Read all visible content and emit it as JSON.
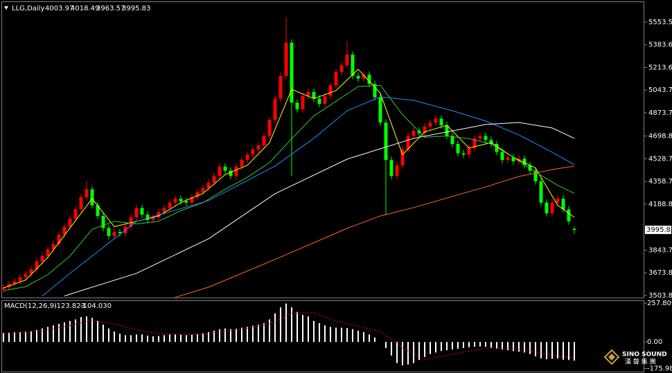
{
  "chart_data": [
    {
      "type": "candlestick",
      "title": "LLG,Daily",
      "open": [
        3550,
        3566,
        3590,
        3610,
        3640,
        3665,
        3700,
        3760,
        3800,
        3850,
        3890,
        3960,
        4020,
        4080,
        4150,
        4240,
        4300,
        4180,
        4100,
        4010,
        3950,
        3980,
        3970,
        4020,
        4090,
        4160,
        4110,
        4070,
        4090,
        4130,
        4160,
        4200,
        4230,
        4210,
        4200,
        4240,
        4280,
        4310,
        4350,
        4400,
        4470,
        4440,
        4400,
        4470,
        4520,
        4560,
        4600,
        4630,
        4700,
        4820,
        4980,
        5150,
        5400,
        4950,
        4900,
        5000,
        5030,
        4980,
        4940,
        5000,
        5080,
        5180,
        5230,
        5310,
        5150,
        5130,
        5160,
        5090,
        4990,
        4800,
        4520,
        4400,
        4480,
        4600,
        4700,
        4740,
        4720,
        4770,
        4800,
        4830,
        4780,
        4700,
        4640,
        4570,
        4560,
        4610,
        4680,
        4700,
        4670,
        4640,
        4580,
        4520,
        4540,
        4510,
        4530,
        4480,
        4440,
        4360,
        4200,
        4120,
        4200,
        4230,
        4150,
        4003.97
      ],
      "high": [
        3591,
        3615,
        3635,
        3665,
        3690,
        3725,
        3785,
        3825,
        3875,
        3915,
        3985,
        4045,
        4105,
        4175,
        4265,
        4360,
        4325,
        4205,
        4125,
        4035,
        4005,
        4005,
        4045,
        4115,
        4185,
        4185,
        4135,
        4115,
        4155,
        4185,
        4225,
        4255,
        4255,
        4235,
        4265,
        4305,
        4335,
        4375,
        4425,
        4495,
        4495,
        4465,
        4495,
        4545,
        4585,
        4625,
        4655,
        4725,
        4845,
        5005,
        5175,
        5590,
        5425,
        4975,
        5025,
        5055,
        5055,
        5005,
        5025,
        5105,
        5205,
        5255,
        5410,
        5335,
        5175,
        5185,
        5185,
        5115,
        5015,
        4825,
        4545,
        4505,
        4625,
        4725,
        4765,
        4765,
        4795,
        4825,
        4855,
        4855,
        4805,
        4725,
        4665,
        4595,
        4635,
        4705,
        4725,
        4725,
        4695,
        4665,
        4605,
        4565,
        4565,
        4555,
        4555,
        4505,
        4465,
        4385,
        4225,
        4225,
        4255,
        4255,
        4175,
        4018.49
      ],
      "low": [
        3525,
        3541,
        3565,
        3585,
        3615,
        3640,
        3675,
        3735,
        3775,
        3825,
        3865,
        3935,
        3995,
        4055,
        4125,
        4215,
        4155,
        4075,
        3985,
        3925,
        3925,
        3945,
        3945,
        3995,
        4065,
        4085,
        4045,
        4045,
        4065,
        4105,
        4135,
        4175,
        4185,
        4175,
        4175,
        4215,
        4255,
        4285,
        4325,
        4375,
        4415,
        4375,
        4375,
        4445,
        4495,
        4535,
        4575,
        4605,
        4675,
        4795,
        4955,
        5125,
        4400,
        4875,
        4875,
        4975,
        4955,
        4915,
        4915,
        4975,
        5055,
        5155,
        5205,
        5125,
        5105,
        5105,
        5065,
        4965,
        4775,
        4111,
        4375,
        4375,
        4455,
        4575,
        4675,
        4695,
        4695,
        4745,
        4775,
        4755,
        4675,
        4615,
        4545,
        4535,
        4535,
        4585,
        4655,
        4645,
        4615,
        4555,
        4495,
        4495,
        4485,
        4485,
        4455,
        4415,
        4335,
        4175,
        4095,
        4095,
        4175,
        4125,
        4035,
        3963.57
      ],
      "close": [
        3566,
        3590,
        3610,
        3640,
        3665,
        3700,
        3760,
        3800,
        3850,
        3890,
        3960,
        4020,
        4080,
        4150,
        4240,
        4300,
        4180,
        4100,
        4010,
        3950,
        3980,
        3970,
        4020,
        4090,
        4160,
        4110,
        4070,
        4090,
        4130,
        4160,
        4200,
        4230,
        4210,
        4200,
        4240,
        4280,
        4310,
        4350,
        4400,
        4470,
        4440,
        4400,
        4470,
        4520,
        4560,
        4600,
        4630,
        4700,
        4820,
        4980,
        5150,
        5400,
        4950,
        4900,
        5000,
        5030,
        4980,
        4940,
        5000,
        5080,
        5180,
        5230,
        5310,
        5150,
        5130,
        5160,
        5090,
        4990,
        4800,
        4520,
        4400,
        4480,
        4600,
        4700,
        4740,
        4720,
        4770,
        4800,
        4830,
        4780,
        4700,
        4640,
        4570,
        4560,
        4610,
        4680,
        4700,
        4670,
        4640,
        4580,
        4520,
        4540,
        4510,
        4530,
        4480,
        4440,
        4360,
        4200,
        4120,
        4200,
        4230,
        4150,
        4060,
        3995.83
      ],
      "up_color": "#ff0000",
      "down_color": "#00ff00",
      "overlays": [
        {
          "color": "#ffff00",
          "x": [
            0,
            4,
            8,
            12,
            16,
            20,
            24,
            28,
            32,
            36,
            40,
            44,
            48,
            52,
            56,
            60,
            64,
            68,
            72,
            76,
            80,
            84,
            88,
            92,
            96,
            100,
            103
          ],
          "values": [
            3560,
            3620,
            3790,
            4010,
            4230,
            4020,
            4060,
            4100,
            4200,
            4270,
            4410,
            4480,
            4650,
            5050,
            4980,
            5040,
            5200,
            5020,
            4560,
            4730,
            4780,
            4610,
            4650,
            4540,
            4460,
            4180,
            4090
          ]
        },
        {
          "color": "#32cd32",
          "x": [
            0,
            4,
            8,
            12,
            16,
            20,
            24,
            28,
            32,
            36,
            40,
            44,
            48,
            52,
            56,
            60,
            64,
            68,
            72,
            76,
            80,
            84,
            88,
            92,
            96,
            100,
            103
          ],
          "values": [
            3540,
            3570,
            3660,
            3800,
            4000,
            4060,
            4040,
            4060,
            4140,
            4200,
            4300,
            4390,
            4500,
            4680,
            4850,
            4960,
            5070,
            5080,
            4860,
            4690,
            4700,
            4680,
            4640,
            4540,
            4430,
            4330,
            4270
          ]
        },
        {
          "color": "#1e90ff",
          "x": [
            7,
            12,
            24,
            37,
            49,
            56,
            62,
            68,
            74,
            81,
            87,
            93,
            99,
            103
          ],
          "values": [
            3500,
            3670,
            4059,
            4215,
            4474,
            4682,
            4889,
            4993,
            4967,
            4889,
            4812,
            4708,
            4578,
            4484
          ]
        },
        {
          "color": "#ffffff",
          "x": [
            11,
            14,
            24,
            37,
            49,
            62,
            74,
            87,
            93,
            99,
            103
          ],
          "values": [
            3500,
            3540,
            3670,
            3929,
            4267,
            4526,
            4682,
            4786,
            4801,
            4760,
            4682
          ]
        },
        {
          "color": "#ff6a1f",
          "x": [
            31,
            37,
            49,
            62,
            68,
            74,
            87,
            93,
            99,
            103
          ],
          "values": [
            3490,
            3566,
            3774,
            4007,
            4100,
            4163,
            4318,
            4396,
            4448,
            4474
          ]
        }
      ],
      "ylim": [
        3483,
        5709
      ],
      "yticks": [
        5553.55,
        {
          "value": 5383.6,
          "label": "5383.60"
        },
        5213.65,
        {
          "value": 5043.7,
          "label": "5043.70"
        },
        4873.75,
        4698.85,
        {
          "value": 4528.7,
          "label": "4528.70"
        },
        4358.75,
        {
          "value": 4188.8,
          "label": "4188.80"
        },
        3843.75,
        {
          "value": 3673.8,
          "label": "3673.80"
        },
        3503.85
      ]
    },
    {
      "type": "macd",
      "title": "MACD(12,26,9)",
      "histogram": [
        60,
        62,
        64,
        66,
        68,
        72,
        80,
        90,
        100,
        110,
        120,
        130,
        140,
        150,
        165,
        170,
        160,
        140,
        115,
        90,
        70,
        55,
        45,
        45,
        50,
        50,
        42,
        38,
        40,
        45,
        50,
        50,
        48,
        45,
        48,
        52,
        58,
        65,
        75,
        85,
        90,
        85,
        88,
        95,
        100,
        108,
        115,
        125,
        150,
        190,
        230,
        255,
        230,
        200,
        180,
        170,
        140,
        125,
        110,
        100,
        95,
        95,
        92,
        85,
        75,
        65,
        50,
        30,
        0,
        -40,
        -90,
        -140,
        -155,
        -150,
        -140,
        -120,
        -100,
        -80,
        -70,
        -60,
        -55,
        -50,
        -45,
        -40,
        -35,
        -32,
        -30,
        -32,
        -38,
        -45,
        -50,
        -55,
        -60,
        -65,
        -70,
        -80,
        -95,
        -110,
        -115,
        -112,
        -110,
        -118,
        -120,
        -123.823
      ],
      "hist_color": "#ffffff",
      "signal": {
        "color": "#ff0000",
        "x": [
          0,
          4,
          8,
          12,
          16,
          20,
          24,
          28,
          32,
          36,
          40,
          44,
          48,
          52,
          56,
          60,
          64,
          68,
          72,
          76,
          80,
          84,
          88,
          92,
          96,
          100,
          103
        ],
        "values": [
          55,
          60,
          80,
          110,
          145,
          120,
          80,
          55,
          50,
          52,
          70,
          90,
          120,
          190,
          195,
          140,
          105,
          70,
          -40,
          -115,
          -90,
          -60,
          -40,
          -45,
          -65,
          -95,
          -104.03
        ]
      },
      "signal_last_label": "-104.030",
      "ylim": [
        -201.6,
        276.6
      ],
      "yticks": [
        257.809,
        {
          "value": 0,
          "label": "0.00"
        },
        -175.983
      ]
    }
  ],
  "logo": {
    "name": "SINO SOUND",
    "subtitle": "漢 聲 集 團"
  }
}
